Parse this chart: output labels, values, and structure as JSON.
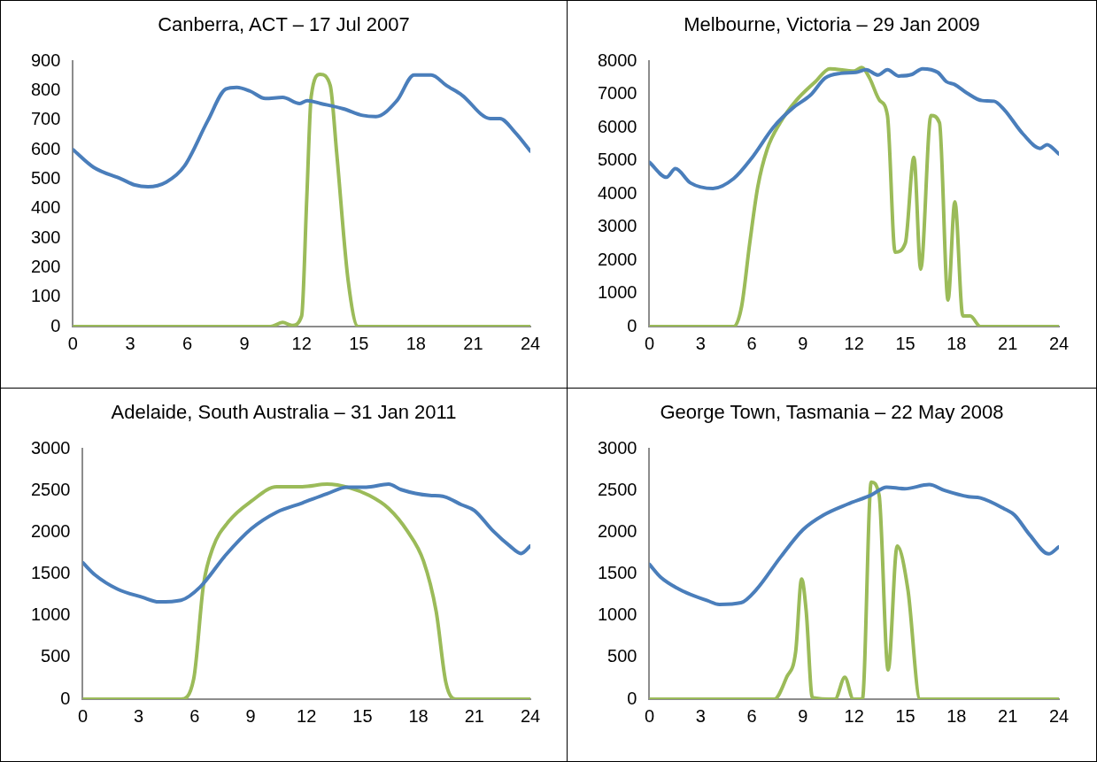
{
  "chart_data": [
    {
      "type": "line",
      "title": "Canberra, ACT – 17 Jul 2007",
      "xlim": [
        0,
        24
      ],
      "xticks": [
        0,
        3,
        6,
        9,
        12,
        15,
        18,
        21,
        24
      ],
      "ylim": [
        0,
        900
      ],
      "yticks": [
        0,
        100,
        200,
        300,
        400,
        500,
        600,
        700,
        800,
        900
      ],
      "grid": false,
      "legend": false,
      "marker": "none",
      "series": [
        {
          "color": "#4a7ebb",
          "x": [
            0,
            1.08,
            2.55,
            3.25,
            3.94,
            4.9,
            5.85,
            7.07,
            8.02,
            8.6,
            9.3,
            10.1,
            11,
            11.9,
            12.3,
            13,
            14.2,
            15.2,
            15.9,
            17,
            17.9,
            18.8,
            19.6,
            20.4,
            21.9,
            22.4,
            23.2,
            24
          ],
          "values": [
            600,
            540,
            500,
            480,
            474,
            490,
            544,
            697,
            805,
            811,
            798,
            773,
            777,
            756,
            766,
            756,
            738,
            716,
            712,
            766,
            853,
            853,
            817,
            785,
            705,
            705,
            658,
            595
          ]
        },
        {
          "color": "#9bbb59",
          "x": [
            0,
            10.36,
            11,
            11.5,
            12,
            12.27,
            12.5,
            12.97,
            13.5,
            13.84,
            14.44,
            14.96,
            24
          ],
          "values": [
            0,
            0,
            14,
            4,
            36,
            436,
            779,
            855,
            817,
            588,
            156,
            0,
            0
          ]
        }
      ]
    },
    {
      "type": "line",
      "title": "Melbourne, Victoria – 29 Jan 2009",
      "xlim": [
        0,
        24
      ],
      "xticks": [
        0,
        3,
        6,
        9,
        12,
        15,
        18,
        21,
        24
      ],
      "ylim": [
        0,
        8000
      ],
      "yticks": [
        0,
        1000,
        2000,
        3000,
        4000,
        5000,
        6000,
        7000,
        8000
      ],
      "grid": false,
      "legend": false,
      "marker": "none",
      "series": [
        {
          "color": "#4a7ebb",
          "x": [
            0,
            1,
            1.52,
            2.4,
            3.72,
            4.94,
            5.97,
            7.29,
            8.41,
            9.45,
            10.3,
            11.2,
            12.1,
            12.7,
            13.4,
            13.95,
            14.6,
            15.4,
            16,
            16.9,
            17.4,
            17.9,
            18.6,
            19.5,
            20.2,
            20.8,
            21.9,
            22.9,
            23.3,
            24
          ],
          "values": [
            4950,
            4500,
            4760,
            4330,
            4160,
            4460,
            5060,
            6020,
            6590,
            6980,
            7490,
            7630,
            7660,
            7740,
            7580,
            7740,
            7550,
            7600,
            7770,
            7660,
            7380,
            7290,
            7040,
            6810,
            6790,
            6530,
            5800,
            5370,
            5480,
            5200
          ]
        },
        {
          "color": "#9bbb59",
          "x": [
            0,
            4.94,
            5.4,
            5.88,
            6.35,
            6.9,
            7.66,
            8.6,
            9.73,
            10.57,
            12,
            12.45,
            12.9,
            13.5,
            13.95,
            14.4,
            15,
            15.5,
            15.9,
            16.5,
            17,
            17.5,
            17.9,
            18.37,
            18.8,
            19.4,
            24
          ],
          "values": [
            0,
            0,
            600,
            2520,
            4210,
            5340,
            6140,
            6810,
            7380,
            7770,
            7700,
            7810,
            7490,
            6810,
            6360,
            2240,
            2520,
            5100,
            1730,
            6360,
            6140,
            800,
            3760,
            320,
            320,
            0,
            0
          ]
        }
      ]
    },
    {
      "type": "line",
      "title": "Adelaide, South Australia – 31 Jan 2011",
      "xlim": [
        0,
        24
      ],
      "xticks": [
        0,
        3,
        6,
        9,
        12,
        15,
        18,
        21,
        24
      ],
      "ylim": [
        0,
        3000
      ],
      "yticks": [
        0,
        500,
        1000,
        1500,
        2000,
        2500,
        3000
      ],
      "grid": false,
      "legend": false,
      "marker": "none",
      "series": [
        {
          "color": "#4a7ebb",
          "x": [
            0,
            0.65,
            1.85,
            3.2,
            4.07,
            5.27,
            6.3,
            7.66,
            9.03,
            10.4,
            11.77,
            13.1,
            14.16,
            15.2,
            16.4,
            17.07,
            18.6,
            19.3,
            20.3,
            21,
            22,
            22.9,
            23.5,
            24
          ],
          "values": [
            1635,
            1490,
            1320,
            1220,
            1165,
            1185,
            1345,
            1725,
            2040,
            2240,
            2350,
            2460,
            2540,
            2540,
            2575,
            2510,
            2440,
            2430,
            2330,
            2260,
            2015,
            1835,
            1745,
            1835
          ]
        },
        {
          "color": "#9bbb59",
          "x": [
            0,
            5.27,
            5.95,
            6.47,
            6.98,
            7.83,
            9.03,
            10.4,
            11.77,
            13.1,
            14.33,
            15.36,
            16.4,
            17.4,
            18.27,
            18.95,
            19.47,
            20,
            24
          ],
          "values": [
            0,
            0,
            246,
            1365,
            1815,
            2130,
            2370,
            2545,
            2545,
            2575,
            2530,
            2440,
            2285,
            2015,
            1655,
            1050,
            200,
            0,
            0
          ]
        }
      ]
    },
    {
      "type": "line",
      "title": "George Town, Tasmania – 22 May 2008",
      "xlim": [
        0,
        24
      ],
      "xticks": [
        0,
        3,
        6,
        9,
        12,
        15,
        18,
        21,
        24
      ],
      "ylim": [
        0,
        3000
      ],
      "yticks": [
        0,
        500,
        1000,
        1500,
        2000,
        2500,
        3000
      ],
      "grid": false,
      "legend": false,
      "marker": "none",
      "series": [
        {
          "color": "#4a7ebb",
          "x": [
            0,
            0.66,
            2,
            3.4,
            4.1,
            5.37,
            6.26,
            7.68,
            9,
            10.2,
            11.6,
            13,
            13.9,
            14.97,
            16.4,
            17.3,
            18.7,
            19.4,
            20.8,
            21.4,
            22.3,
            23.4,
            24
          ],
          "values": [
            1615,
            1460,
            1290,
            1180,
            1135,
            1155,
            1310,
            1700,
            2030,
            2205,
            2335,
            2445,
            2540,
            2520,
            2570,
            2500,
            2425,
            2410,
            2280,
            2205,
            1965,
            1740,
            1825
          ]
        },
        {
          "color": "#9bbb59",
          "x": [
            0,
            7.32,
            8.04,
            8.57,
            8.92,
            9.19,
            9.55,
            10.88,
            11.45,
            11.95,
            12.48,
            13,
            13.46,
            13.99,
            14.52,
            15.15,
            15.86,
            24
          ],
          "values": [
            0,
            0,
            262,
            568,
            1440,
            1050,
            20,
            0,
            262,
            0,
            0,
            2600,
            2445,
            350,
            1835,
            1310,
            0,
            0
          ]
        }
      ]
    }
  ]
}
